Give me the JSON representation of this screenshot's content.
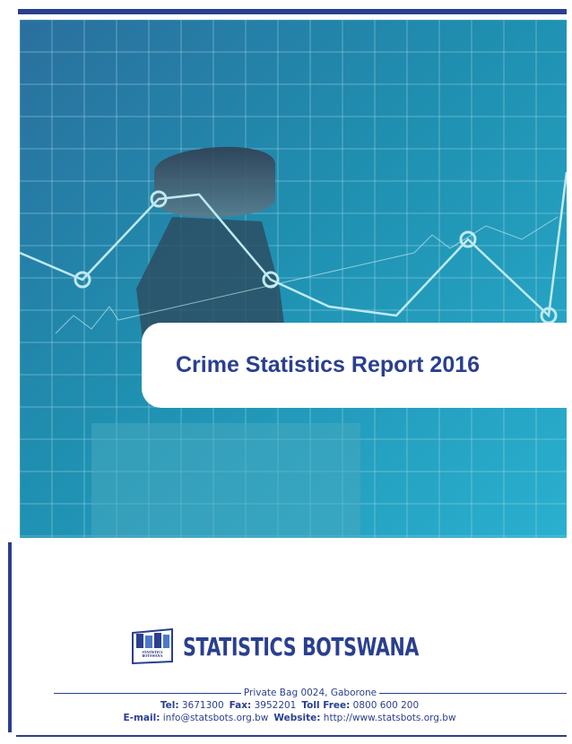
{
  "cover": {
    "title": "Crime Statistics Report 2016"
  },
  "logo": {
    "name": "STATISTICS BOTSWANA",
    "badge": "STATISTICS BOTSWANA"
  },
  "footer": {
    "address": "Private Bag 0024, Gaborone",
    "phones": [
      {
        "label": "Tel:",
        "value": "3671300"
      },
      {
        "label": "Fax:",
        "value": "3952201"
      },
      {
        "label": "Toll Free:",
        "value": "0800 600 200"
      }
    ],
    "online": [
      {
        "label": "E-mail:",
        "value": "info@statsbots.org.bw"
      },
      {
        "label": "Website:",
        "value": "http://www.statsbots.org.bw"
      }
    ]
  }
}
